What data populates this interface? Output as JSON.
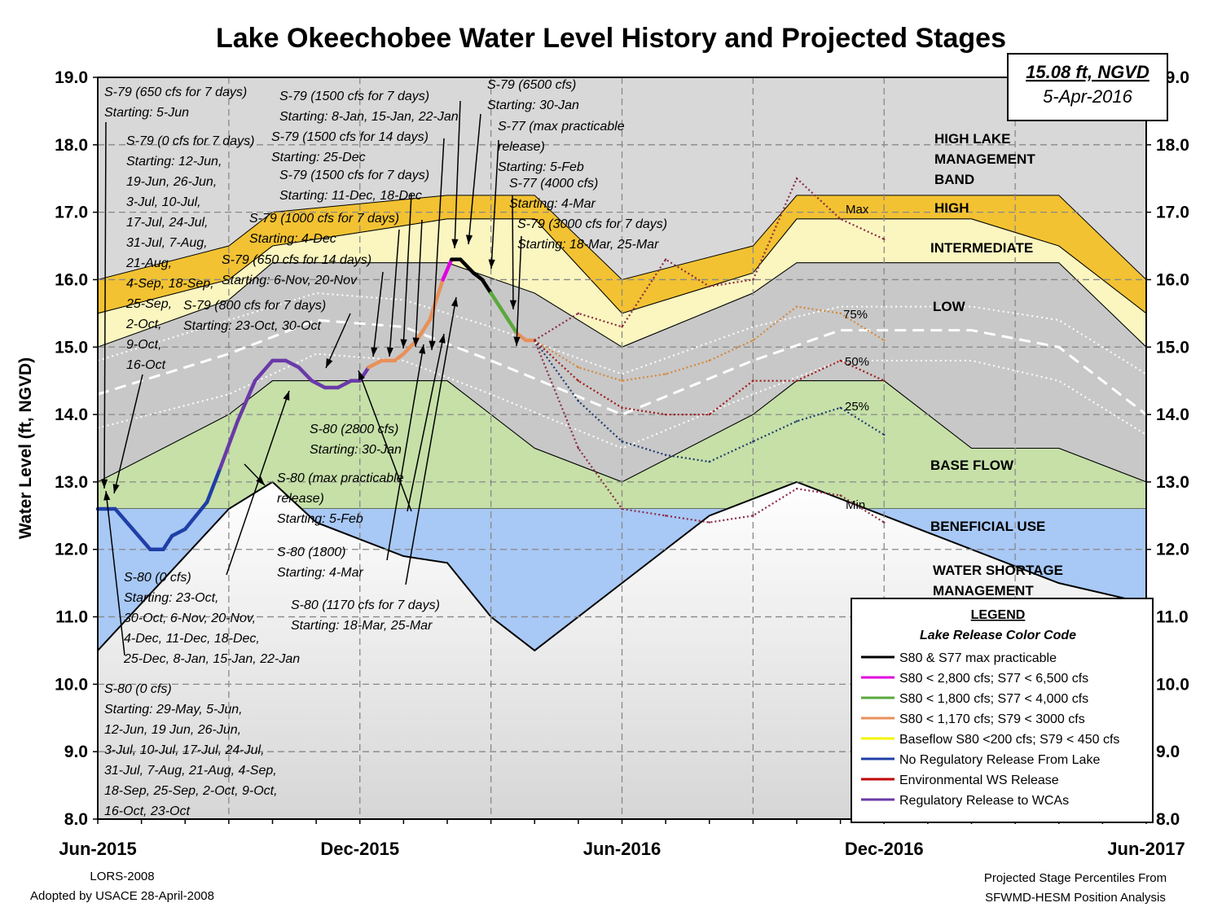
{
  "title": "Lake Okeechobee Water Level History and Projected Stages",
  "stamp": {
    "stage": "15.08 ft, NGVD",
    "date": "5-Apr-2016"
  },
  "footer": {
    "left_line1": "LORS-2008",
    "left_line2": "Adopted by USACE 28-April-2008",
    "right_line1": "Projected Stage Percentiles From",
    "right_line2": "SFWMD-HESM Position Analysis"
  },
  "legend": {
    "title": "LEGEND",
    "subtitle": "Lake Release Color Code",
    "items": [
      {
        "label": "S80 & S77 max practicable",
        "color": "#000000"
      },
      {
        "label": "S80 < 2,800 cfs; S77 < 6,500 cfs",
        "color": "#e000e0"
      },
      {
        "label": "S80 < 1,800 cfs; S77 < 4,000 cfs",
        "color": "#5aa83c"
      },
      {
        "label": "S80 < 1,170 cfs; S79 < 3000 cfs",
        "color": "#e8905a"
      },
      {
        "label": "Baseflow S80 <200 cfs; S79 < 450 cfs",
        "color": "#f5f500"
      },
      {
        "label": "No Regulatory Release From Lake",
        "color": "#1f3fa8"
      },
      {
        "label": "Environmental WS Release",
        "color": "#c00000"
      },
      {
        "label": "Regulatory Release to WCAs",
        "color": "#6a3aa8"
      }
    ]
  },
  "zone_labels": [
    "HIGH LAKE",
    "MANAGEMENT",
    "BAND",
    "HIGH",
    "INTERMEDIATE",
    "LOW",
    "BASE FLOW",
    "BENEFICIAL USE",
    "WATER SHORTAGE",
    "MANAGEMENT"
  ],
  "percentile_labels": [
    "Max",
    "75%",
    "50%",
    "25%",
    "Min"
  ],
  "annotations": [
    {
      "lines": [
        "S-79 (650 cfs for 7 days)",
        "Starting: 5-Jun"
      ]
    },
    {
      "lines": [
        "S-79 (0 cfs for 7 days)",
        "Starting: 12-Jun,",
        "19-Jun, 26-Jun,",
        "3-Jul, 10-Jul,",
        "17-Jul, 24-Jul,",
        "31-Jul, 7-Aug,",
        "21-Aug,",
        "4-Sep, 18-Sep,",
        "25-Sep,",
        "2-Oct,",
        "9-Oct,",
        "16-Oct"
      ]
    },
    {
      "lines": [
        "S-79 (1500 cfs for 7 days)",
        "Starting: 8-Jan, 15-Jan, 22-Jan"
      ]
    },
    {
      "lines": [
        "S-79 (1500 cfs for 14 days)",
        "Starting: 25-Dec"
      ]
    },
    {
      "lines": [
        "S-79 (1500 cfs for 7 days)",
        "Starting: 11-Dec, 18-Dec"
      ]
    },
    {
      "lines": [
        "S-79 (1000 cfs for 7 days)",
        "Starting: 4-Dec"
      ]
    },
    {
      "lines": [
        "S-79 (650 cfs for 14 days)",
        "Starting: 6-Nov, 20-Nov"
      ]
    },
    {
      "lines": [
        "S-79 (800 cfs for 7 days)",
        "Starting: 23-Oct, 30-Oct"
      ]
    },
    {
      "lines": [
        "S-79 (6500 cfs)",
        "Starting: 30-Jan"
      ]
    },
    {
      "lines": [
        "S-77 (max practicable",
        "release)",
        "Starting: 5-Feb"
      ]
    },
    {
      "lines": [
        "S-77 (4000 cfs)",
        "Starting: 4-Mar"
      ]
    },
    {
      "lines": [
        "S-79 (3000 cfs for 7 days)",
        "Starting: 18-Mar, 25-Mar"
      ]
    },
    {
      "lines": [
        "S-80 (2800 cfs)",
        "Starting: 30-Jan"
      ]
    },
    {
      "lines": [
        "S-80 (max practicable",
        "release)",
        "Starting: 5-Feb"
      ]
    },
    {
      "lines": [
        "S-80 (1800)",
        "Starting: 4-Mar"
      ]
    },
    {
      "lines": [
        "S-80 (1170 cfs for 7 days)",
        "Starting: 18-Mar, 25-Mar"
      ]
    },
    {
      "lines": [
        "S-80 (0 cfs)",
        "Starting: 23-Oct,",
        "30-Oct, 6-Nov, 20-Nov,",
        "4-Dec, 11-Dec, 18-Dec,",
        "25-Dec, 8-Jan, 15-Jan, 22-Jan"
      ]
    },
    {
      "lines": [
        "S-80 (0 cfs)",
        "Starting: 29-May, 5-Jun,",
        "12-Jun, 19 Jun, 26-Jun,",
        "3-Jul, 10-Jul, 17-Jul, 24-Jul,",
        "31-Jul, 7-Aug, 21-Aug, 4-Sep,",
        "18-Sep, 25-Sep, 2-Oct, 9-Oct,",
        "16-Oct, 23-Oct"
      ]
    }
  ],
  "chart_data": {
    "type": "line",
    "title": "Lake Okeechobee Water Level History and Projected Stages",
    "ylabel": "Water Level (ft, NGVD)",
    "xlabel": "",
    "ylim": [
      8.0,
      19.0
    ],
    "yticks": [
      "8.0",
      "9.0",
      "10.0",
      "11.0",
      "12.0",
      "13.0",
      "14.0",
      "15.0",
      "16.0",
      "17.0",
      "18.0",
      "19.0"
    ],
    "xticks": [
      "Jun-2015",
      "Dec-2015",
      "Jun-2016",
      "Dec-2016",
      "Jun-2017"
    ],
    "x_unit": "months since Jun-2015",
    "xlim": [
      0,
      24
    ],
    "grid": true,
    "zones": {
      "x": [
        0,
        3,
        4,
        8,
        10,
        12,
        15,
        16,
        18,
        20,
        22,
        24
      ],
      "high_top": [
        16.0,
        16.5,
        17.0,
        17.25,
        17.25,
        16.0,
        16.5,
        17.25,
        17.25,
        17.25,
        17.25,
        16.0
      ],
      "inter_top": [
        15.5,
        16.0,
        16.5,
        16.9,
        16.9,
        15.5,
        16.1,
        16.9,
        16.9,
        16.9,
        16.5,
        15.5
      ],
      "low_top": [
        15.0,
        15.7,
        16.25,
        16.25,
        15.8,
        15.0,
        15.8,
        16.25,
        16.25,
        16.25,
        16.25,
        15.0
      ],
      "base_top": [
        13.0,
        14.0,
        14.5,
        14.5,
        13.5,
        13.0,
        14.0,
        14.5,
        14.5,
        13.5,
        13.5,
        13.0
      ],
      "benef_top": [
        12.6,
        12.6,
        12.6,
        12.6,
        12.6,
        12.6,
        12.6,
        12.6,
        12.6,
        12.6,
        12.6,
        12.6
      ],
      "wsm_x": [
        0,
        3,
        4,
        5,
        7,
        8,
        9,
        10,
        12,
        14,
        16,
        18,
        20,
        22,
        24
      ],
      "wsm_top": [
        10.5,
        12.6,
        13.0,
        12.4,
        11.9,
        11.8,
        11.0,
        10.5,
        11.5,
        12.5,
        13.0,
        12.5,
        12.0,
        11.5,
        11.2
      ]
    },
    "series": [
      {
        "name": "Observed stage",
        "x": [
          0,
          0.4,
          0.8,
          1.2,
          1.5,
          1.7,
          2.0,
          2.5,
          2.8,
          3.2,
          3.6,
          4.0,
          4.3,
          4.6,
          4.9,
          5.2,
          5.5,
          5.8,
          6.0,
          6.2,
          6.5,
          6.8,
          7.0,
          7.3,
          7.6,
          7.9,
          8.1,
          8.3,
          8.6,
          8.8,
          9.0,
          9.2,
          9.4,
          9.6,
          9.8,
          10.0
        ],
        "y": [
          12.6,
          12.6,
          12.3,
          12.0,
          12.0,
          12.2,
          12.3,
          12.7,
          13.2,
          13.9,
          14.5,
          14.8,
          14.8,
          14.7,
          14.5,
          14.4,
          14.4,
          14.5,
          14.5,
          14.7,
          14.8,
          14.8,
          14.9,
          15.1,
          15.4,
          16.0,
          16.3,
          16.3,
          16.1,
          16.0,
          15.8,
          15.6,
          15.4,
          15.2,
          15.1,
          15.1
        ]
      },
      {
        "name": "Max",
        "x": [
          10,
          11,
          12,
          13,
          14,
          15,
          16,
          17,
          18
        ],
        "y": [
          15.1,
          15.5,
          15.3,
          16.3,
          15.9,
          16.0,
          17.5,
          16.9,
          16.6
        ]
      },
      {
        "name": "75%",
        "x": [
          10,
          11,
          12,
          13,
          14,
          15,
          16,
          17,
          18
        ],
        "y": [
          15.1,
          14.7,
          14.5,
          14.6,
          14.8,
          15.1,
          15.6,
          15.5,
          15.1
        ]
      },
      {
        "name": "50%",
        "x": [
          10,
          11,
          12,
          13,
          14,
          15,
          16,
          17,
          18
        ],
        "y": [
          15.1,
          14.5,
          14.1,
          14.0,
          14.0,
          14.5,
          14.5,
          14.8,
          14.5
        ]
      },
      {
        "name": "25%",
        "x": [
          10,
          11,
          12,
          13,
          14,
          15,
          16,
          17,
          18
        ],
        "y": [
          15.1,
          14.2,
          13.6,
          13.4,
          13.3,
          13.6,
          13.9,
          14.1,
          13.7
        ]
      },
      {
        "name": "Min",
        "x": [
          10,
          11,
          12,
          13,
          14,
          15,
          16,
          17,
          18
        ],
        "y": [
          15.1,
          13.5,
          12.6,
          12.5,
          12.4,
          12.5,
          12.9,
          12.8,
          12.4
        ]
      }
    ]
  }
}
